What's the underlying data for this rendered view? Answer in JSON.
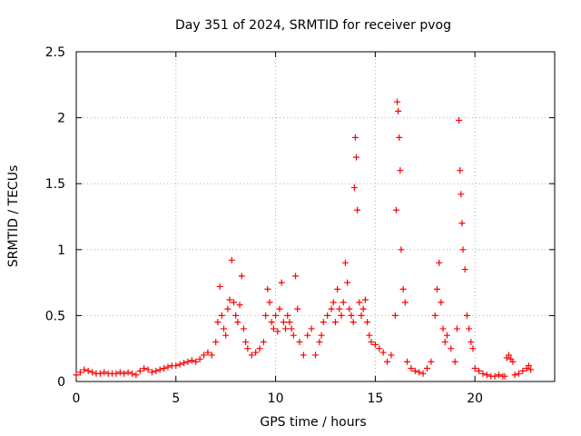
{
  "chart_data": {
    "type": "scatter",
    "title": "Day 351 of 2024, SRMTID for receiver pvog",
    "xlabel": "GPS time / hours",
    "ylabel": "SRMTID / TECUs",
    "xlim": [
      0,
      24
    ],
    "ylim": [
      0,
      2.5
    ],
    "xticks": [
      0,
      5,
      10,
      15,
      20
    ],
    "xtick_labels": [
      "0",
      "5",
      "10",
      "15",
      "20"
    ],
    "yticks": [
      0,
      0.5,
      1,
      1.5,
      2,
      2.5
    ],
    "ytick_labels": [
      "0",
      "0.5",
      "1",
      "1.5",
      "2",
      "2.5"
    ],
    "grid": true,
    "legend": "none",
    "marker": "+",
    "series": [
      {
        "name": "pvog",
        "color": "#ff0000",
        "x": [
          0.0,
          0.2,
          0.4,
          0.6,
          0.8,
          1.0,
          1.2,
          1.4,
          1.6,
          1.8,
          2.0,
          2.2,
          2.4,
          2.6,
          2.8,
          3.0,
          3.2,
          3.4,
          3.6,
          3.8,
          4.0,
          4.2,
          4.4,
          4.6,
          4.8,
          5.0,
          5.2,
          5.4,
          5.6,
          5.8,
          6.0,
          6.2,
          6.4,
          6.6,
          6.8,
          7.0,
          7.1,
          7.2,
          7.3,
          7.4,
          7.5,
          7.6,
          7.7,
          7.8,
          7.9,
          8.0,
          8.1,
          8.2,
          8.3,
          8.4,
          8.5,
          8.6,
          8.8,
          9.0,
          9.2,
          9.4,
          9.5,
          9.6,
          9.7,
          9.8,
          9.9,
          10.0,
          10.1,
          10.2,
          10.3,
          10.4,
          10.5,
          10.6,
          10.7,
          10.8,
          10.9,
          11.0,
          11.1,
          11.2,
          11.4,
          11.6,
          11.8,
          12.0,
          12.2,
          12.3,
          12.4,
          12.6,
          12.8,
          12.9,
          13.0,
          13.1,
          13.2,
          13.3,
          13.4,
          13.5,
          13.6,
          13.7,
          13.8,
          13.9,
          13.95,
          14.0,
          14.05,
          14.1,
          14.2,
          14.3,
          14.4,
          14.5,
          14.6,
          14.7,
          14.8,
          15.0,
          15.2,
          15.4,
          15.6,
          15.8,
          16.0,
          16.05,
          16.1,
          16.15,
          16.2,
          16.25,
          16.3,
          16.4,
          16.5,
          16.6,
          16.8,
          17.0,
          17.2,
          17.4,
          17.6,
          17.8,
          18.0,
          18.1,
          18.2,
          18.3,
          18.4,
          18.5,
          18.6,
          18.8,
          19.0,
          19.1,
          19.2,
          19.25,
          19.3,
          19.35,
          19.4,
          19.5,
          19.6,
          19.7,
          19.8,
          19.9,
          20.0,
          20.2,
          20.4,
          20.6,
          20.8,
          21.0,
          21.2,
          21.4,
          21.5,
          21.6,
          21.7,
          21.8,
          21.9,
          22.0,
          22.2,
          22.4,
          22.6,
          22.7,
          22.8
        ],
        "y": [
          0.05,
          0.07,
          0.09,
          0.08,
          0.07,
          0.06,
          0.06,
          0.07,
          0.06,
          0.06,
          0.06,
          0.07,
          0.06,
          0.07,
          0.06,
          0.05,
          0.08,
          0.1,
          0.09,
          0.07,
          0.08,
          0.09,
          0.1,
          0.11,
          0.12,
          0.12,
          0.13,
          0.14,
          0.15,
          0.16,
          0.15,
          0.17,
          0.2,
          0.22,
          0.2,
          0.3,
          0.45,
          0.72,
          0.5,
          0.4,
          0.35,
          0.55,
          0.62,
          0.92,
          0.6,
          0.5,
          0.45,
          0.58,
          0.8,
          0.4,
          0.3,
          0.25,
          0.2,
          0.22,
          0.25,
          0.3,
          0.5,
          0.7,
          0.6,
          0.45,
          0.4,
          0.5,
          0.38,
          0.55,
          0.75,
          0.45,
          0.4,
          0.5,
          0.45,
          0.4,
          0.35,
          0.8,
          0.55,
          0.3,
          0.2,
          0.35,
          0.4,
          0.2,
          0.3,
          0.35,
          0.45,
          0.5,
          0.55,
          0.6,
          0.45,
          0.7,
          0.55,
          0.5,
          0.6,
          0.9,
          0.75,
          0.55,
          0.5,
          0.45,
          1.47,
          1.85,
          1.7,
          1.3,
          0.6,
          0.5,
          0.55,
          0.62,
          0.45,
          0.35,
          0.3,
          0.28,
          0.25,
          0.22,
          0.15,
          0.2,
          0.5,
          1.3,
          2.12,
          2.05,
          1.85,
          1.6,
          1.0,
          0.7,
          0.6,
          0.15,
          0.1,
          0.08,
          0.07,
          0.06,
          0.1,
          0.15,
          0.5,
          0.7,
          0.9,
          0.6,
          0.4,
          0.3,
          0.35,
          0.25,
          0.15,
          0.4,
          1.98,
          1.6,
          1.42,
          1.2,
          1.0,
          0.85,
          0.5,
          0.4,
          0.3,
          0.25,
          0.1,
          0.08,
          0.06,
          0.05,
          0.04,
          0.04,
          0.05,
          0.04,
          0.04,
          0.18,
          0.2,
          0.17,
          0.15,
          0.05,
          0.06,
          0.08,
          0.1,
          0.12,
          0.09
        ]
      }
    ]
  }
}
